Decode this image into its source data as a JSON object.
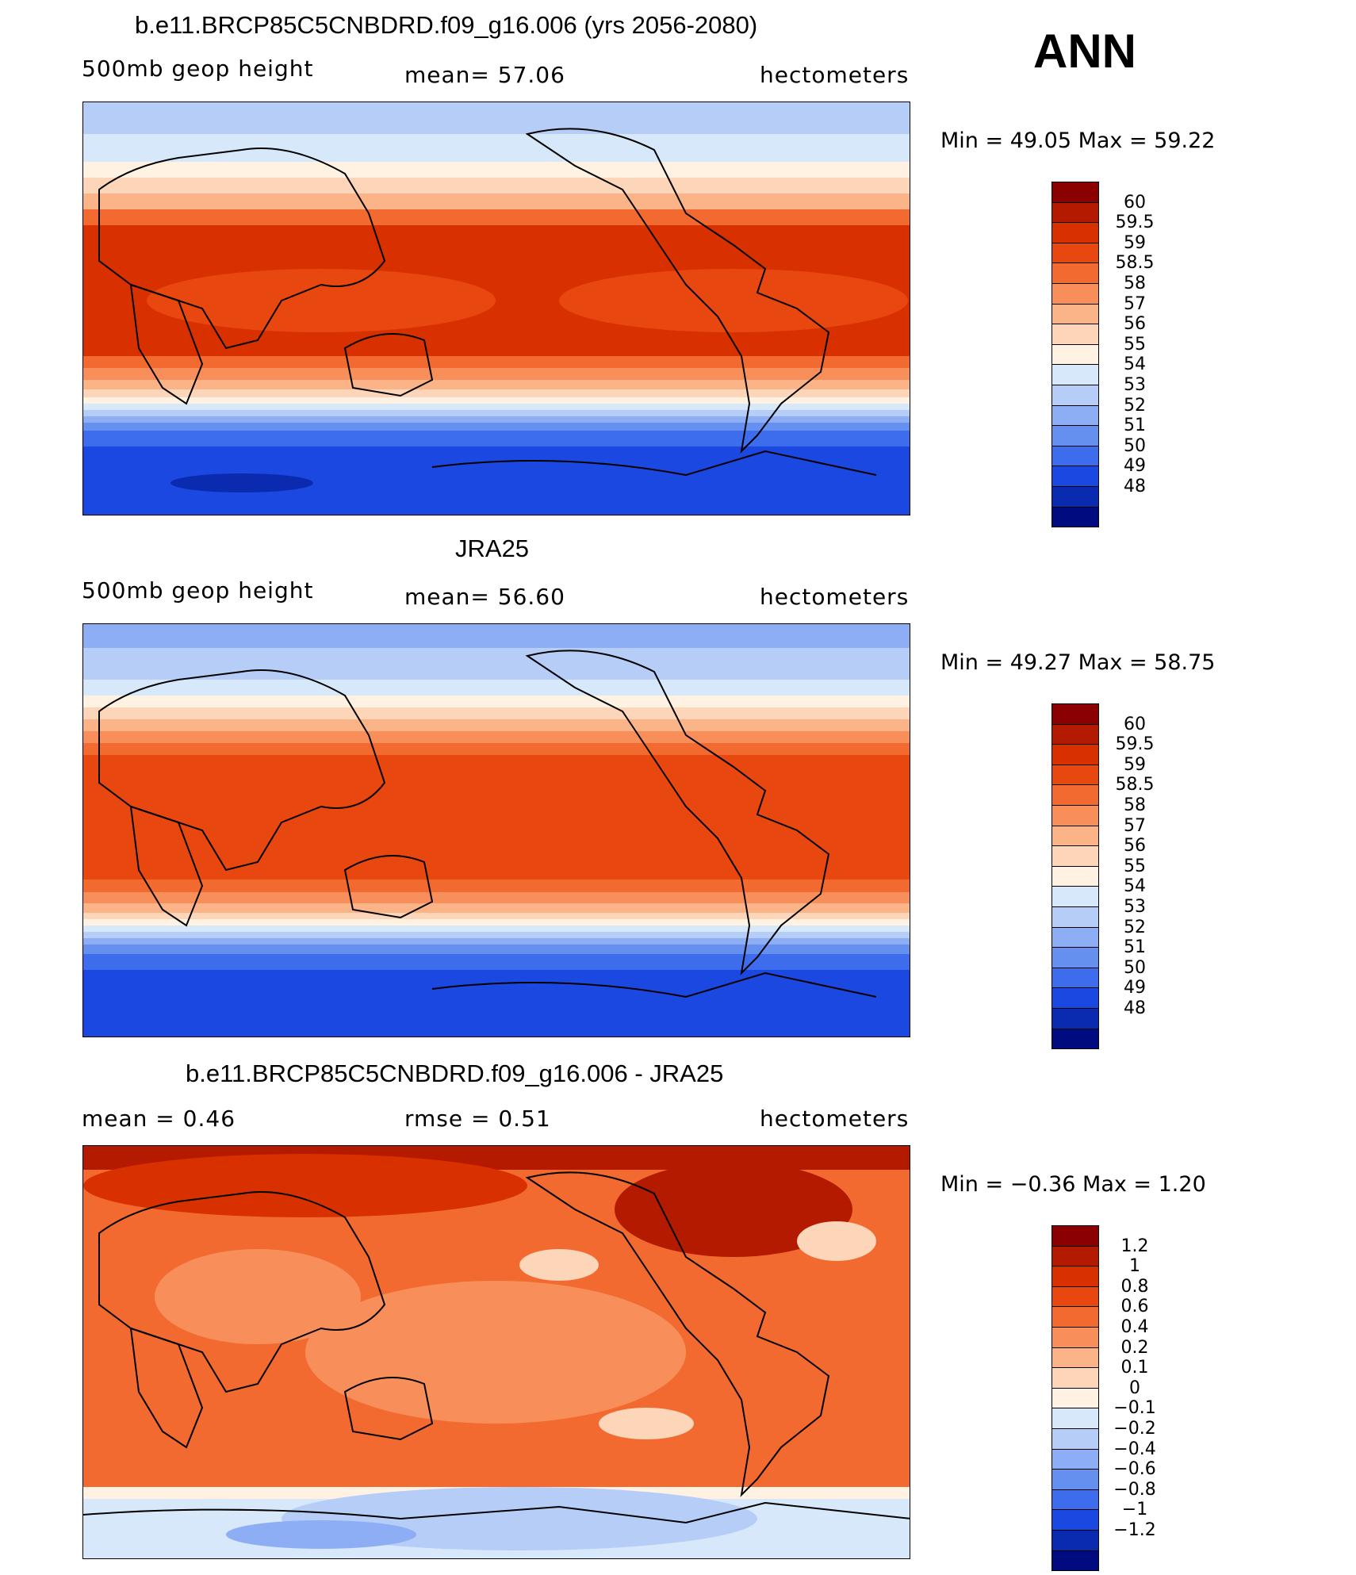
{
  "season": "ANN",
  "panels": [
    {
      "title": "b.e11.BRCP85C5CNBDRD.f09_g16.006 (yrs 2056-2080)",
      "left": "500mb geop height",
      "center": "mean=   57.06",
      "right": "hectometers",
      "minmax": "Min =   49.05 Max =   59.22",
      "type": "field"
    },
    {
      "title": "JRA25",
      "left": "500mb geop height",
      "center": "mean=   56.60",
      "right": "hectometers",
      "minmax": "Min =   49.27 Max =   58.75",
      "type": "field"
    },
    {
      "title": "b.e11.BRCP85C5CNBDRD.f09_g16.006 - JRA25",
      "left": "mean =    0.46",
      "center": "rmse =    0.51",
      "right": "hectometers",
      "minmax": "Min =  −0.36 Max =    1.20",
      "type": "diff"
    }
  ],
  "colorbars": {
    "field": {
      "labels": [
        "60",
        "59.5",
        "59",
        "58.5",
        "58",
        "57",
        "56",
        "55",
        "54",
        "53",
        "52",
        "51",
        "50",
        "49",
        "48"
      ],
      "colors": [
        "#8b0000",
        "#b31a00",
        "#d93000",
        "#e8470f",
        "#f26a30",
        "#f88f5a",
        "#fbb488",
        "#fdd5b8",
        "#fff2e2",
        "#d8e8fb",
        "#b6cdf8",
        "#8daef5",
        "#6690f0",
        "#3d6cec",
        "#1a48e0",
        "#0a2bb0",
        "#000b80"
      ]
    },
    "diff": {
      "labels": [
        "1.2",
        "1",
        "0.8",
        "0.6",
        "0.4",
        "0.2",
        "0.1",
        "0",
        "−0.1",
        "−0.2",
        "−0.4",
        "−0.6",
        "−0.8",
        "−1",
        "−1.2"
      ],
      "colors": [
        "#8b0000",
        "#b31a00",
        "#d93000",
        "#e8470f",
        "#f26a30",
        "#f88f5a",
        "#fbb488",
        "#fdd5b8",
        "#fff2e2",
        "#d8e8fb",
        "#b6cdf8",
        "#8daef5",
        "#6690f0",
        "#3d6cec",
        "#1a48e0",
        "#0a2bb0",
        "#000b80"
      ]
    }
  }
}
